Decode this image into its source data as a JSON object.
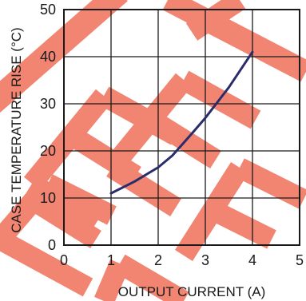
{
  "chart_data": {
    "type": "line",
    "xlabel": "OUTPUT CURRENT (A)",
    "ylabel": "CASE TEMPERATURE RISE (°C)",
    "xlim": [
      0,
      5
    ],
    "ylim": [
      0,
      50
    ],
    "x_ticks": [
      0,
      1,
      2,
      3,
      4,
      5
    ],
    "y_ticks": [
      0,
      10,
      20,
      30,
      40,
      50
    ],
    "grid": true,
    "watermark": "REFER",
    "colors": {
      "line": "#2b2d6b",
      "watermark": "#f0705a",
      "grid": "#1a1a1a"
    },
    "series": [
      {
        "x": [
          1.0,
          1.5,
          2.0,
          2.3,
          2.7,
          3.0,
          3.5,
          4.0
        ],
        "y": [
          11.0,
          13.5,
          16.5,
          19.0,
          23.5,
          27.0,
          33.5,
          41.0
        ]
      }
    ]
  }
}
